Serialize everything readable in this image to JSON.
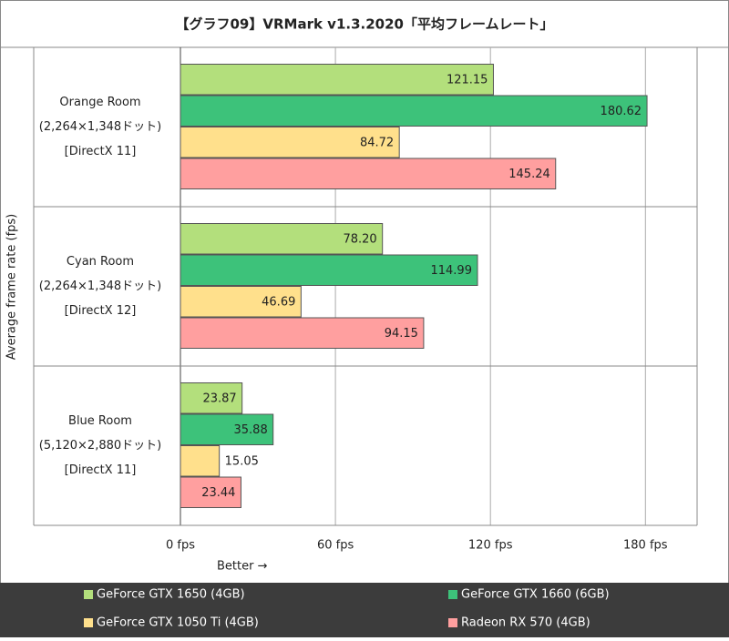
{
  "chart_data": {
    "type": "hbar",
    "title": "【グラフ09】VRMark v1.3.2020「平均フレームレート」",
    "y_label": "Average frame rate (fps)",
    "x_note": "Better →",
    "categories": [
      [
        "Orange Room",
        "(2,264×1,348ドット)",
        "[DirectX 11]"
      ],
      [
        "Cyan Room",
        "(2,264×1,348ドット)",
        "[DirectX 12]"
      ],
      [
        "Blue Room",
        "(5,120×2,880ドット)",
        "[DirectX 11]"
      ]
    ],
    "series": [
      {
        "name": "GeForce GTX 1650 (4GB)",
        "color": "#b3df7c",
        "values": [
          121.15,
          78.2,
          23.87
        ],
        "value_labels": [
          "121.15",
          "78.20",
          "23.87"
        ]
      },
      {
        "name": "GeForce GTX 1660 (6GB)",
        "color": "#3dc27a",
        "values": [
          180.62,
          114.99,
          35.88
        ],
        "value_labels": [
          "180.62",
          "114.99",
          "35.88"
        ]
      },
      {
        "name": "GeForce GTX 1050 Ti (4GB)",
        "color": "#ffe08c",
        "values": [
          84.72,
          46.69,
          15.05
        ],
        "value_labels": [
          "84.72",
          "46.69",
          "15.05"
        ]
      },
      {
        "name": "Radeon RX 570 (4GB)",
        "color": "#ff9f9f",
        "values": [
          145.24,
          94.15,
          23.44
        ],
        "value_labels": [
          "145.24",
          "94.15",
          "23.44"
        ]
      }
    ],
    "xlim": [
      0,
      200
    ],
    "xticks": [
      {
        "value": 0,
        "label": "0 fps"
      },
      {
        "value": 60,
        "label": "60 fps"
      },
      {
        "value": 120,
        "label": "120 fps"
      },
      {
        "value": 180,
        "label": "180 fps"
      }
    ],
    "grid": true
  }
}
